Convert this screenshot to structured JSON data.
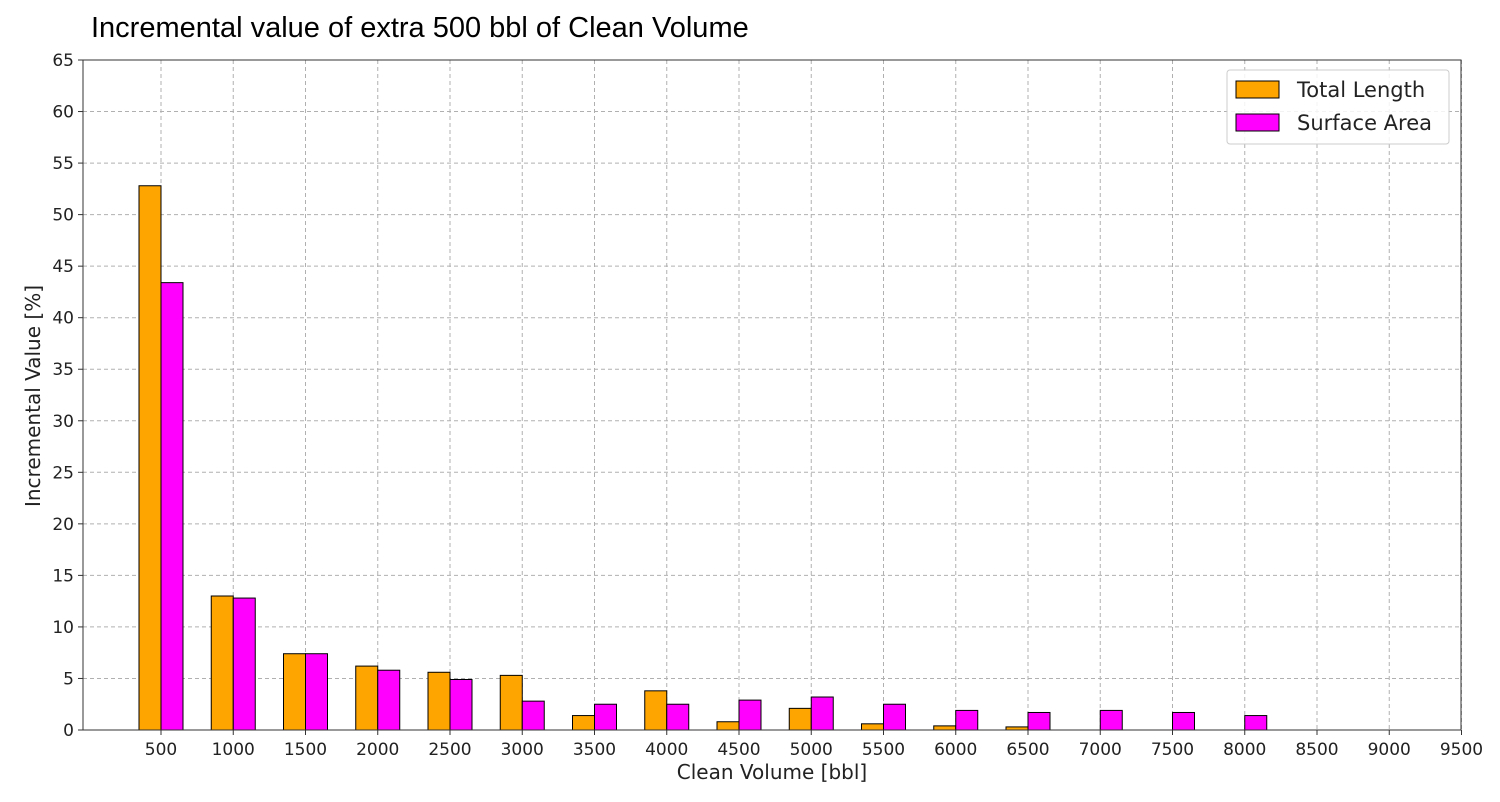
{
  "chart_data": {
    "type": "bar",
    "title": "Incremental value of extra 500 bbl of Clean Volume",
    "xlabel": "Clean Volume [bbl]",
    "ylabel": "Incremental Value [%]",
    "categories": [
      "500",
      "1000",
      "1500",
      "2000",
      "2500",
      "3000",
      "3500",
      "4000",
      "4500",
      "5000",
      "5500",
      "6000",
      "6500",
      "7000",
      "7500",
      "8000",
      "8500",
      "9000",
      "9500"
    ],
    "series": [
      {
        "name": "Total Length",
        "color": "#ffa500",
        "values": [
          52.8,
          13.0,
          7.4,
          6.2,
          5.6,
          5.3,
          1.4,
          3.8,
          0.8,
          2.1,
          0.6,
          0.4,
          0.3,
          0,
          0,
          0,
          0,
          0,
          0
        ]
      },
      {
        "name": "Surface Area",
        "color": "#ff00ff",
        "values": [
          43.4,
          12.8,
          7.4,
          5.8,
          4.9,
          2.8,
          2.5,
          2.5,
          2.9,
          3.2,
          2.5,
          1.9,
          1.7,
          1.9,
          1.7,
          1.4,
          0,
          0,
          0
        ]
      }
    ],
    "ylim": [
      0,
      65
    ],
    "yticks": [
      0,
      5,
      10,
      15,
      20,
      25,
      30,
      35,
      40,
      45,
      50,
      55,
      60,
      65
    ],
    "grid": true,
    "legend_position": "top-right"
  }
}
